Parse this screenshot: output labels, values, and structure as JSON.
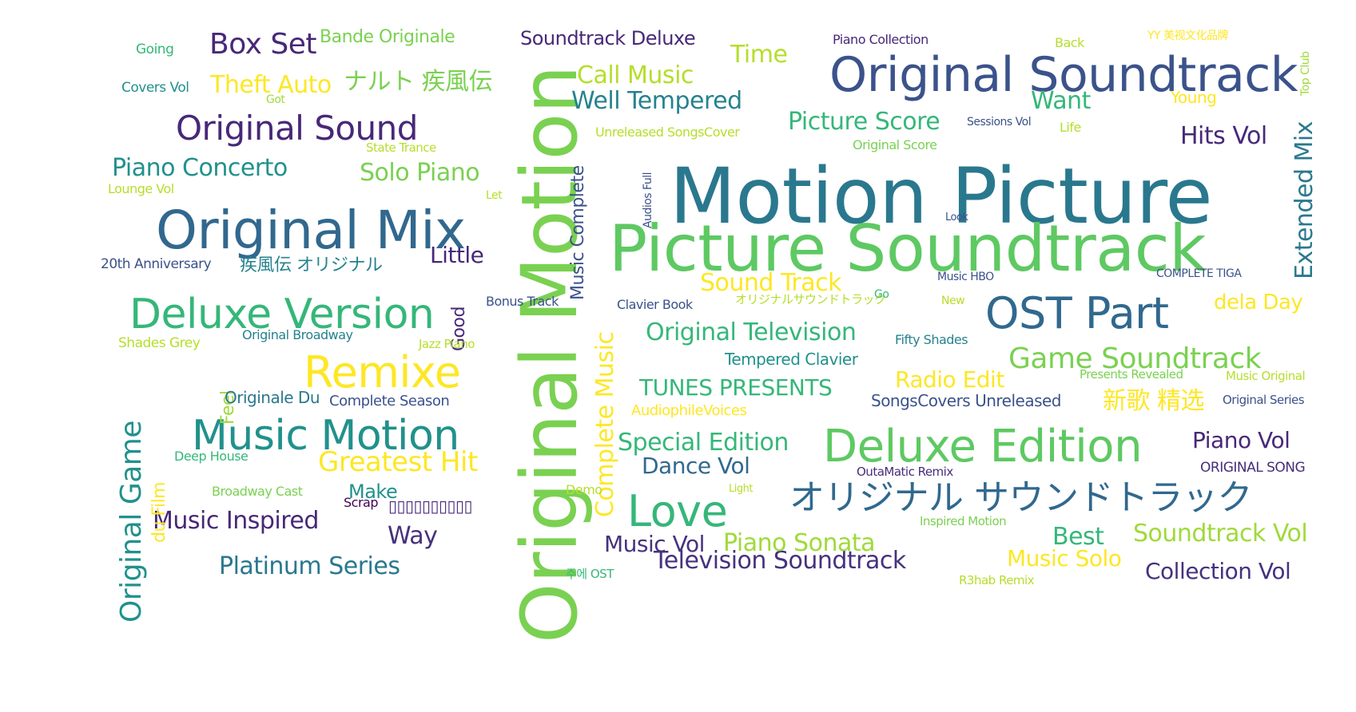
{
  "words": [
    {
      "text": "Motion Picture",
      "color": "#2a788e"
    },
    {
      "text": "Picture Soundtrack",
      "color": "#5ec962"
    },
    {
      "text": "Original Motion",
      "color": "#7ad151"
    },
    {
      "text": "Original Soundtrack",
      "color": "#3b528b"
    },
    {
      "text": "Original Mix",
      "color": "#31688e"
    },
    {
      "text": "Deluxe Version",
      "color": "#35b779"
    },
    {
      "text": "Deluxe Edition",
      "color": "#5ec962"
    },
    {
      "text": "OST Part",
      "color": "#31688e"
    },
    {
      "text": "Music Motion",
      "color": "#21918c"
    },
    {
      "text": "Remixe",
      "color": "#fde725"
    },
    {
      "text": "オリジナル サウンドトラック",
      "color": "#31688e"
    },
    {
      "text": "Love",
      "color": "#35b779"
    },
    {
      "text": "Original Sound",
      "color": "#482878"
    },
    {
      "text": "Game Soundtrack",
      "color": "#7ad151"
    },
    {
      "text": "Box Set",
      "color": "#482878"
    },
    {
      "text": "Greatest Hit",
      "color": "#fde725"
    },
    {
      "text": "ナルト 疾風伝",
      "color": "#7ad151"
    },
    {
      "text": "Piano Concerto",
      "color": "#21918c"
    },
    {
      "text": "Solo Piano",
      "color": "#7ad151"
    },
    {
      "text": "Original Television",
      "color": "#35b779"
    },
    {
      "text": "Call Music",
      "color": "#b5de2b"
    },
    {
      "text": "Well Tempered",
      "color": "#26828e"
    },
    {
      "text": "Picture Score",
      "color": "#35b779"
    },
    {
      "text": "Sound Track",
      "color": "#fde725"
    },
    {
      "text": "Special Edition",
      "color": "#35b779"
    },
    {
      "text": "TUNES PRESENTS",
      "color": "#35b779"
    },
    {
      "text": "Television Soundtrack",
      "color": "#46327e"
    },
    {
      "text": "Soundtrack Vol",
      "color": "#9fda3a"
    },
    {
      "text": "Collection Vol",
      "color": "#46327e"
    },
    {
      "text": "Music Inspired",
      "color": "#482878"
    },
    {
      "text": "Platinum Series",
      "color": "#2a788e"
    },
    {
      "text": "Piano Sonata",
      "color": "#9fda3a"
    },
    {
      "text": "Music Vol",
      "color": "#46327e"
    },
    {
      "text": "Dance Vol",
      "color": "#31688e"
    },
    {
      "text": "Theft Auto",
      "color": "#fde725"
    },
    {
      "text": "Hits Vol",
      "color": "#482878"
    },
    {
      "text": "Piano Vol",
      "color": "#482878"
    },
    {
      "text": "Radio Edit",
      "color": "#fde725"
    },
    {
      "text": "Music Solo",
      "color": "#fde725"
    },
    {
      "text": "新歌 精选",
      "color": "#fde725"
    },
    {
      "text": "Time",
      "color": "#b5de2b"
    },
    {
      "text": "Want",
      "color": "#35b779"
    },
    {
      "text": "Best",
      "color": "#35b779"
    },
    {
      "text": "Way",
      "color": "#46327e"
    },
    {
      "text": "Little",
      "color": "#482878"
    },
    {
      "text": "Make",
      "color": "#21918c"
    },
    {
      "text": "Soundtrack Deluxe",
      "color": "#482878"
    },
    {
      "text": "Bande Originale",
      "color": "#7ad151"
    },
    {
      "text": "dela Day",
      "color": "#fde725"
    },
    {
      "text": "Original Game",
      "color": "#21918c"
    },
    {
      "text": "Complete Music",
      "color": "#fde725"
    },
    {
      "text": "Music Complete",
      "color": "#3b528b"
    },
    {
      "text": "Extended Mix",
      "color": "#2a788e"
    },
    {
      "text": "du Film",
      "color": "#fde725"
    },
    {
      "text": "Good",
      "color": "#482878"
    },
    {
      "text": "Feel",
      "color": "#9fda3a"
    },
    {
      "text": "疾風伝 オリジナル",
      "color": "#26828e"
    },
    {
      "text": "Tempered Clavier",
      "color": "#21918c"
    },
    {
      "text": "Originale Du",
      "color": "#2a788e"
    },
    {
      "text": "Complete Season",
      "color": "#3b528b"
    },
    {
      "text": "SongsCovers Unreleased",
      "color": "#3b528b"
    },
    {
      "text": "AudiophileVoices",
      "color": "#fde725"
    },
    {
      "text": "Original Broadway",
      "color": "#26828e"
    },
    {
      "text": "20th Anniversary",
      "color": "#3b528b"
    },
    {
      "text": "Going",
      "color": "#35b779"
    },
    {
      "text": "Covers Vol",
      "color": "#21918c"
    },
    {
      "text": "Lounge Vol",
      "color": "#b5de2b"
    },
    {
      "text": "Shades Grey",
      "color": "#b5de2b"
    },
    {
      "text": "Deep House",
      "color": "#35b779"
    },
    {
      "text": "Broadway Cast",
      "color": "#7ad151"
    },
    {
      "text": "Scrap",
      "color": "#440154"
    },
    {
      "text": "▯▯▯▯▯▯▯▯▯▯",
      "color": "#482878"
    },
    {
      "text": "Piano Collection",
      "color": "#482878"
    },
    {
      "text": "Back",
      "color": "#b5de2b"
    },
    {
      "text": "YY 美视文化品牌",
      "color": "#fde725"
    },
    {
      "text": "Sessions Vol",
      "color": "#3b528b"
    },
    {
      "text": "Life",
      "color": "#b5de2b"
    },
    {
      "text": "Original Score",
      "color": "#7ad151"
    },
    {
      "text": "Unreleased SongsCover",
      "color": "#b5de2b"
    },
    {
      "text": "Bonus Track",
      "color": "#3b528b"
    },
    {
      "text": "Clavier Book",
      "color": "#3b528b"
    },
    {
      "text": "オリジナルサウンドトラック",
      "color": "#b5de2b"
    },
    {
      "text": "Fifty Shades",
      "color": "#26828e"
    },
    {
      "text": "Music HBO",
      "color": "#3b528b"
    },
    {
      "text": "COMPLETE TIGA",
      "color": "#3b528b"
    },
    {
      "text": "Presents Revealed",
      "color": "#7ad151"
    },
    {
      "text": "Music Original",
      "color": "#b5de2b"
    },
    {
      "text": "Original Series",
      "color": "#3b528b"
    },
    {
      "text": "ORIGINAL SONG",
      "color": "#472d7b"
    },
    {
      "text": "OutaMatic Remix",
      "color": "#472d7b"
    },
    {
      "text": "Inspired Motion",
      "color": "#7ad151"
    },
    {
      "text": "R3hab Remix",
      "color": "#b5de2b"
    },
    {
      "text": "주에 OST",
      "color": "#35b779"
    },
    {
      "text": "Top Club",
      "color": "#9fda3a"
    },
    {
      "text": "Young",
      "color": "#fde725"
    },
    {
      "text": "State Trance",
      "color": "#b5de2b"
    },
    {
      "text": "Jazz Piano",
      "color": "#b5de2b"
    },
    {
      "text": "Demo",
      "color": "#b5de2b"
    },
    {
      "text": "Audios Full",
      "color": "#3b528b"
    },
    {
      "text": "Go",
      "color": "#35b779"
    },
    {
      "text": "New",
      "color": "#b5de2b"
    },
    {
      "text": "Let",
      "color": "#b5de2b"
    },
    {
      "text": "Got",
      "color": "#9fda3a"
    },
    {
      "text": "Light",
      "color": "#b5de2b"
    },
    {
      "text": "Look",
      "color": "#3b528b"
    }
  ]
}
